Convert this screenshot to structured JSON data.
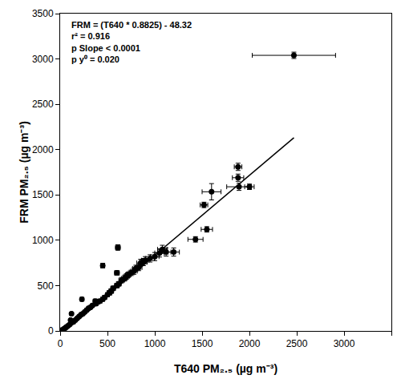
{
  "chart_data": {
    "type": "scatter",
    "x_label": "T640 PM₂.₅ (µg m⁻³)",
    "y_label": "FRM PM₂.₅ (µg m⁻³)",
    "annotation": [
      "FRM = (T640 * 0.8825) - 48.32",
      "r² = 0.916",
      "p Slope < 0.0001",
      "p y⁰ = 0.020"
    ],
    "color": "#000000",
    "marker": "circle",
    "grid": false,
    "xlim": [
      0,
      3500
    ],
    "ylim": [
      0,
      3500
    ],
    "xticks": [
      0,
      500,
      1000,
      1500,
      2000,
      2500,
      3000,
      3500
    ],
    "yticks": [
      0,
      500,
      1000,
      1500,
      2000,
      2500,
      3000,
      3500
    ],
    "x": [
      20,
      40,
      60,
      80,
      100,
      110,
      120,
      140,
      160,
      180,
      200,
      220,
      230,
      240,
      260,
      280,
      300,
      320,
      340,
      370,
      380,
      400,
      420,
      450,
      450,
      470,
      500,
      520,
      540,
      560,
      600,
      600,
      610,
      620,
      650,
      680,
      700,
      720,
      750,
      780,
      800,
      830,
      850,
      880,
      900,
      950,
      1000,
      1050,
      1080,
      1120,
      1200,
      1430,
      1550,
      1520,
      1600,
      1880,
      1880,
      1890,
      2000,
      2470
    ],
    "values": [
      10,
      25,
      40,
      55,
      70,
      120,
      190,
      100,
      120,
      140,
      160,
      180,
      350,
      190,
      210,
      230,
      250,
      260,
      280,
      330,
      300,
      320,
      330,
      720,
      350,
      370,
      400,
      420,
      440,
      470,
      640,
      500,
      920,
      520,
      560,
      580,
      600,
      620,
      640,
      660,
      690,
      700,
      750,
      760,
      780,
      800,
      820,
      860,
      900,
      870,
      870,
      1010,
      1120,
      1390,
      1535,
      1810,
      1690,
      1590,
      1590,
      3040
    ],
    "x_error": [
      8,
      8,
      8,
      8,
      10,
      10,
      10,
      10,
      10,
      12,
      12,
      12,
      12,
      12,
      12,
      15,
      15,
      15,
      15,
      15,
      15,
      20,
      20,
      20,
      20,
      20,
      20,
      25,
      25,
      25,
      25,
      25,
      25,
      25,
      30,
      30,
      30,
      30,
      30,
      35,
      35,
      35,
      40,
      40,
      40,
      45,
      45,
      50,
      50,
      50,
      60,
      80,
      60,
      40,
      100,
      40,
      60,
      130,
      50,
      440
    ],
    "y_error": [
      8,
      8,
      8,
      8,
      10,
      10,
      15,
      10,
      10,
      12,
      12,
      12,
      20,
      12,
      12,
      15,
      15,
      15,
      15,
      20,
      15,
      20,
      20,
      25,
      20,
      20,
      20,
      25,
      25,
      25,
      25,
      25,
      30,
      25,
      30,
      30,
      30,
      30,
      30,
      35,
      35,
      35,
      40,
      40,
      40,
      40,
      45,
      45,
      45,
      45,
      45,
      30,
      30,
      30,
      90,
      40,
      40,
      40,
      30,
      35
    ],
    "fit": {
      "slope": 0.8825,
      "intercept": -48.32,
      "x_range": [
        55,
        2470
      ]
    }
  }
}
